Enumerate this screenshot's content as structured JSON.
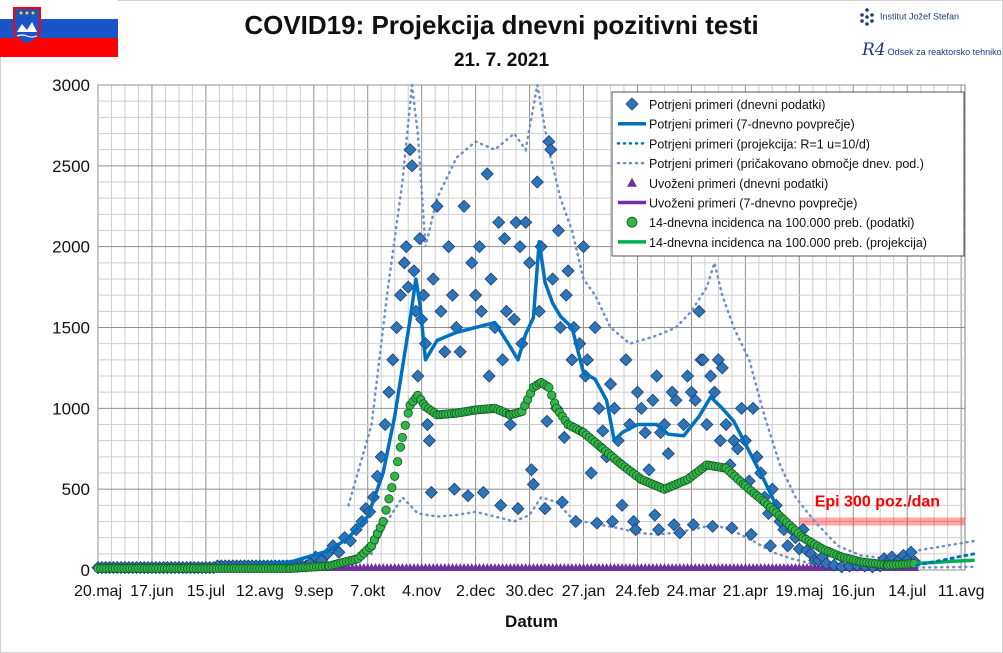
{
  "header": {
    "title": "COVID19: Projekcija dnevni pozitivni testi",
    "date": "21. 7. 2021"
  },
  "logos": {
    "ijs": "Institut Jožef Stefan",
    "r4_mark": "R4",
    "r4": "Odsek za reaktorsko tehniko"
  },
  "colors": {
    "blue": "#0070c0",
    "dark_blue": "#1f3c7a",
    "green": "#00b050",
    "purple": "#7030a0",
    "red": "#ff0000"
  },
  "chart_data": {
    "type": "scatter",
    "xlabel": "Datum",
    "ylabel": "",
    "ylim": [
      0,
      3000
    ],
    "yticks": [
      0,
      500,
      1000,
      1500,
      2000,
      2500,
      3000
    ],
    "x_tick_labels": [
      "20.maj",
      "17.jun",
      "15.jul",
      "12.avg",
      "9.sep",
      "7.okt",
      "4.nov",
      "2.dec",
      "30.dec",
      "27.jan",
      "24.feb",
      "24.mar",
      "21.apr",
      "19.maj",
      "16.jun",
      "14.jul",
      "11.avg"
    ],
    "x_tick_days": [
      0,
      28,
      56,
      84,
      112,
      140,
      168,
      196,
      224,
      252,
      280,
      308,
      336,
      364,
      392,
      420,
      448
    ],
    "x_start": "2020-05-20",
    "grid": true,
    "legend_position": "top-right",
    "annotation": {
      "text": "Epi 300 poz./dan",
      "value": 300
    },
    "legend": [
      {
        "label": "Potrjeni primeri (dnevni podatki)",
        "kind": "diamond",
        "color": "#2e75b6"
      },
      {
        "label": "Potrjeni primeri (7-dnevno povprečje)",
        "kind": "line",
        "color": "#0070c0"
      },
      {
        "label": "Potrjeni primeri (projekcija: R=1 u=10/d)",
        "kind": "dots",
        "color": "#0070c0"
      },
      {
        "label": "Potrjeni primeri (pričakovano območje dnev. pod.)",
        "kind": "dots-small",
        "color": "#6e8fc9"
      },
      {
        "label": "Uvoženi primeri (dnevni podatki)",
        "kind": "triangle",
        "color": "#7030a0"
      },
      {
        "label": "Uvoženi primeri (7-dnevno povprečje)",
        "kind": "line",
        "color": "#7030a0"
      },
      {
        "label": "14-dnevna incidenca na 100.000 preb. (podatki)",
        "kind": "circle",
        "color": "#00b050"
      },
      {
        "label": "14-dnevna incidenca na 100.000 preb. (projekcija)",
        "kind": "line",
        "color": "#00b050"
      }
    ],
    "avg7_points": [
      [
        0,
        10
      ],
      [
        60,
        20
      ],
      [
        100,
        50
      ],
      [
        120,
        120
      ],
      [
        130,
        200
      ],
      [
        140,
        330
      ],
      [
        148,
        600
      ],
      [
        154,
        950
      ],
      [
        158,
        1250
      ],
      [
        162,
        1550
      ],
      [
        165,
        1800
      ],
      [
        167,
        1650
      ],
      [
        170,
        1300
      ],
      [
        176,
        1420
      ],
      [
        186,
        1470
      ],
      [
        196,
        1500
      ],
      [
        206,
        1530
      ],
      [
        214,
        1380
      ],
      [
        218,
        1300
      ],
      [
        222,
        1460
      ],
      [
        226,
        1560
      ],
      [
        229,
        2030
      ],
      [
        232,
        1780
      ],
      [
        236,
        1650
      ],
      [
        240,
        1570
      ],
      [
        246,
        1500
      ],
      [
        252,
        1220
      ],
      [
        258,
        1180
      ],
      [
        264,
        1050
      ],
      [
        268,
        800
      ],
      [
        272,
        850
      ],
      [
        280,
        900
      ],
      [
        290,
        900
      ],
      [
        296,
        840
      ],
      [
        304,
        830
      ],
      [
        312,
        950
      ],
      [
        318,
        1070
      ],
      [
        324,
        1000
      ],
      [
        330,
        920
      ],
      [
        336,
        780
      ],
      [
        346,
        550
      ],
      [
        354,
        350
      ],
      [
        362,
        250
      ],
      [
        372,
        150
      ],
      [
        384,
        70
      ],
      [
        396,
        40
      ],
      [
        412,
        30
      ],
      [
        425,
        40
      ]
    ],
    "green_points": [
      [
        0,
        10
      ],
      [
        100,
        10
      ],
      [
        120,
        25
      ],
      [
        135,
        70
      ],
      [
        142,
        150
      ],
      [
        148,
        300
      ],
      [
        154,
        580
      ],
      [
        158,
        820
      ],
      [
        162,
        1020
      ],
      [
        166,
        1080
      ],
      [
        170,
        1010
      ],
      [
        176,
        960
      ],
      [
        186,
        970
      ],
      [
        196,
        990
      ],
      [
        206,
        1000
      ],
      [
        214,
        960
      ],
      [
        220,
        980
      ],
      [
        226,
        1130
      ],
      [
        230,
        1160
      ],
      [
        234,
        1130
      ],
      [
        238,
        1000
      ],
      [
        244,
        900
      ],
      [
        252,
        850
      ],
      [
        262,
        750
      ],
      [
        272,
        650
      ],
      [
        282,
        560
      ],
      [
        294,
        500
      ],
      [
        306,
        560
      ],
      [
        316,
        650
      ],
      [
        326,
        630
      ],
      [
        336,
        520
      ],
      [
        346,
        420
      ],
      [
        356,
        310
      ],
      [
        366,
        200
      ],
      [
        376,
        130
      ],
      [
        386,
        80
      ],
      [
        396,
        50
      ],
      [
        410,
        30
      ],
      [
        425,
        40
      ]
    ],
    "green_projection": [
      [
        425,
        40
      ],
      [
        445,
        55
      ],
      [
        455,
        60
      ]
    ],
    "projection_points": [
      [
        425,
        30
      ],
      [
        438,
        60
      ],
      [
        450,
        90
      ],
      [
        455,
        100
      ]
    ],
    "upper_band": [
      [
        130,
        400
      ],
      [
        142,
        900
      ],
      [
        150,
        1700
      ],
      [
        158,
        2400
      ],
      [
        163,
        3000
      ],
      [
        166,
        2700
      ],
      [
        170,
        2000
      ],
      [
        176,
        2300
      ],
      [
        186,
        2550
      ],
      [
        196,
        2650
      ],
      [
        206,
        2600
      ],
      [
        216,
        2700
      ],
      [
        222,
        2600
      ],
      [
        228,
        3000
      ],
      [
        234,
        2600
      ],
      [
        240,
        2300
      ],
      [
        246,
        2100
      ],
      [
        252,
        1800
      ],
      [
        258,
        1700
      ],
      [
        266,
        1500
      ],
      [
        276,
        1400
      ],
      [
        290,
        1450
      ],
      [
        300,
        1500
      ],
      [
        308,
        1600
      ],
      [
        316,
        1750
      ],
      [
        320,
        1900
      ],
      [
        324,
        1700
      ],
      [
        330,
        1500
      ],
      [
        338,
        1300
      ],
      [
        346,
        950
      ],
      [
        354,
        650
      ],
      [
        362,
        450
      ],
      [
        372,
        300
      ],
      [
        384,
        150
      ],
      [
        396,
        90
      ],
      [
        410,
        70
      ],
      [
        425,
        120
      ],
      [
        455,
        180
      ]
    ],
    "lower_band": [
      [
        130,
        50
      ],
      [
        142,
        100
      ],
      [
        150,
        300
      ],
      [
        158,
        450
      ],
      [
        166,
        350
      ],
      [
        176,
        330
      ],
      [
        186,
        340
      ],
      [
        196,
        360
      ],
      [
        206,
        330
      ],
      [
        216,
        300
      ],
      [
        224,
        340
      ],
      [
        230,
        450
      ],
      [
        238,
        420
      ],
      [
        246,
        320
      ],
      [
        252,
        300
      ],
      [
        260,
        280
      ],
      [
        270,
        260
      ],
      [
        280,
        230
      ],
      [
        290,
        220
      ],
      [
        300,
        230
      ],
      [
        312,
        260
      ],
      [
        320,
        280
      ],
      [
        330,
        240
      ],
      [
        340,
        180
      ],
      [
        350,
        110
      ],
      [
        360,
        70
      ],
      [
        370,
        40
      ],
      [
        384,
        20
      ],
      [
        400,
        10
      ],
      [
        425,
        15
      ],
      [
        455,
        20
      ]
    ],
    "daily_points": [
      [
        110,
        40
      ],
      [
        113,
        80
      ],
      [
        116,
        60
      ],
      [
        119,
        100
      ],
      [
        122,
        150
      ],
      [
        125,
        110
      ],
      [
        128,
        200
      ],
      [
        131,
        180
      ],
      [
        134,
        250
      ],
      [
        137,
        300
      ],
      [
        139,
        380
      ],
      [
        141,
        360
      ],
      [
        143,
        450
      ],
      [
        145,
        580
      ],
      [
        147,
        700
      ],
      [
        149,
        900
      ],
      [
        151,
        1100
      ],
      [
        153,
        1300
      ],
      [
        155,
        1500
      ],
      [
        157,
        1700
      ],
      [
        159,
        1900
      ],
      [
        160,
        2000
      ],
      [
        161,
        1750
      ],
      [
        162,
        2600
      ],
      [
        163,
        2500
      ],
      [
        164,
        1850
      ],
      [
        165,
        1600
      ],
      [
        166,
        1200
      ],
      [
        167,
        2050
      ],
      [
        168,
        1550
      ],
      [
        169,
        1700
      ],
      [
        170,
        1400
      ],
      [
        171,
        900
      ],
      [
        172,
        800
      ],
      [
        173,
        480
      ],
      [
        174,
        1800
      ],
      [
        176,
        2250
      ],
      [
        178,
        1600
      ],
      [
        180,
        1350
      ],
      [
        182,
        2000
      ],
      [
        184,
        1700
      ],
      [
        185,
        500
      ],
      [
        186,
        1500
      ],
      [
        188,
        1350
      ],
      [
        190,
        2250
      ],
      [
        192,
        460
      ],
      [
        194,
        1900
      ],
      [
        196,
        1700
      ],
      [
        198,
        2000
      ],
      [
        199,
        1600
      ],
      [
        200,
        480
      ],
      [
        202,
        2450
      ],
      [
        203,
        1200
      ],
      [
        204,
        1800
      ],
      [
        206,
        1500
      ],
      [
        208,
        2150
      ],
      [
        209,
        400
      ],
      [
        210,
        1300
      ],
      [
        211,
        2050
      ],
      [
        212,
        1600
      ],
      [
        214,
        900
      ],
      [
        216,
        1550
      ],
      [
        217,
        2150
      ],
      [
        218,
        380
      ],
      [
        219,
        2000
      ],
      [
        220,
        1400
      ],
      [
        222,
        2150
      ],
      [
        224,
        1900
      ],
      [
        225,
        620
      ],
      [
        226,
        530
      ],
      [
        228,
        2400
      ],
      [
        229,
        1600
      ],
      [
        230,
        2000
      ],
      [
        232,
        380
      ],
      [
        233,
        920
      ],
      [
        234,
        2650
      ],
      [
        235,
        2600
      ],
      [
        236,
        1800
      ],
      [
        238,
        1000
      ],
      [
        239,
        2100
      ],
      [
        240,
        1500
      ],
      [
        241,
        420
      ],
      [
        242,
        820
      ],
      [
        243,
        1700
      ],
      [
        244,
        1850
      ],
      [
        246,
        1300
      ],
      [
        247,
        1500
      ],
      [
        248,
        300
      ],
      [
        250,
        1400
      ],
      [
        252,
        2000
      ],
      [
        253,
        1200
      ],
      [
        254,
        1300
      ],
      [
        256,
        600
      ],
      [
        258,
        1500
      ],
      [
        259,
        290
      ],
      [
        260,
        1000
      ],
      [
        262,
        860
      ],
      [
        264,
        700
      ],
      [
        266,
        1150
      ],
      [
        267,
        300
      ],
      [
        268,
        1000
      ],
      [
        270,
        800
      ],
      [
        272,
        400
      ],
      [
        274,
        1300
      ],
      [
        276,
        900
      ],
      [
        278,
        300
      ],
      [
        279,
        250
      ],
      [
        280,
        1100
      ],
      [
        282,
        1000
      ],
      [
        284,
        850
      ],
      [
        286,
        620
      ],
      [
        288,
        1050
      ],
      [
        289,
        340
      ],
      [
        290,
        1200
      ],
      [
        291,
        250
      ],
      [
        292,
        850
      ],
      [
        294,
        900
      ],
      [
        296,
        720
      ],
      [
        298,
        1100
      ],
      [
        299,
        280
      ],
      [
        300,
        1050
      ],
      [
        302,
        230
      ],
      [
        304,
        900
      ],
      [
        306,
        1200
      ],
      [
        308,
        1100
      ],
      [
        309,
        280
      ],
      [
        310,
        1050
      ],
      [
        312,
        1600
      ],
      [
        313,
        1300
      ],
      [
        314,
        1300
      ],
      [
        316,
        900
      ],
      [
        318,
        1200
      ],
      [
        319,
        270
      ],
      [
        320,
        1100
      ],
      [
        322,
        1300
      ],
      [
        323,
        800
      ],
      [
        324,
        1250
      ],
      [
        326,
        900
      ],
      [
        328,
        650
      ],
      [
        329,
        260
      ],
      [
        330,
        800
      ],
      [
        332,
        750
      ],
      [
        334,
        1000
      ],
      [
        336,
        800
      ],
      [
        338,
        550
      ],
      [
        339,
        220
      ],
      [
        340,
        1000
      ],
      [
        342,
        700
      ],
      [
        344,
        600
      ],
      [
        346,
        450
      ],
      [
        348,
        350
      ],
      [
        349,
        150
      ],
      [
        350,
        500
      ],
      [
        352,
        400
      ],
      [
        354,
        300
      ],
      [
        356,
        250
      ],
      [
        358,
        150
      ],
      [
        360,
        250
      ],
      [
        362,
        200
      ],
      [
        364,
        130
      ],
      [
        366,
        250
      ],
      [
        368,
        120
      ],
      [
        370,
        100
      ],
      [
        372,
        60
      ],
      [
        374,
        60
      ],
      [
        376,
        80
      ],
      [
        378,
        40
      ],
      [
        382,
        30
      ],
      [
        386,
        20
      ],
      [
        390,
        25
      ],
      [
        394,
        30
      ],
      [
        398,
        25
      ],
      [
        402,
        20
      ],
      [
        406,
        25
      ],
      [
        408,
        70
      ],
      [
        410,
        50
      ],
      [
        412,
        80
      ],
      [
        414,
        40
      ],
      [
        416,
        60
      ],
      [
        418,
        90
      ],
      [
        420,
        60
      ],
      [
        422,
        110
      ],
      [
        424,
        50
      ]
    ]
  }
}
